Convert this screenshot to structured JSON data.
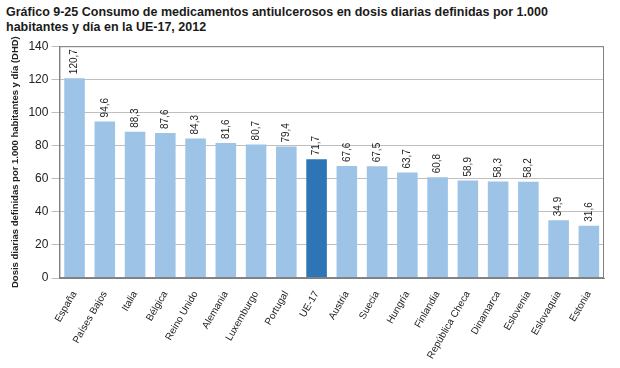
{
  "chart_data": {
    "type": "bar",
    "title": "Gráfico 9-25 Consumo de medicamentos antiulcerosos en dosis diarias definidas por 1.000 habitantes y día en la UE-17, 2012",
    "y_label": "Dosis diarias definidas por 1.000 habitantes y día (DHD)",
    "categories": [
      "España",
      "Países Bajos",
      "Italia",
      "Bélgica",
      "Reino Unido",
      "Alemania",
      "Luxemburgo",
      "Portugal",
      "UE-17",
      "Austria",
      "Suecia",
      "Hungría",
      "Finlandia",
      "República Checa",
      "Dinamarca",
      "Eslovenia",
      "Eslovaquia",
      "Estonia"
    ],
    "values": [
      120.7,
      94.6,
      88.3,
      87.6,
      84.3,
      81.6,
      80.7,
      79.4,
      71.7,
      67.6,
      67.5,
      63.7,
      60.8,
      58.9,
      58.3,
      58.2,
      34.9,
      31.6
    ],
    "value_labels": [
      "120,7",
      "94,6",
      "88,3",
      "87,6",
      "84,3",
      "81,6",
      "80,7",
      "79,4",
      "71,7",
      "67,6",
      "67,5",
      "63,7",
      "60,8",
      "58,9",
      "58,3",
      "58,2",
      "34,9",
      "31,6"
    ],
    "colors": [
      "#9dc3e6",
      "#9dc3e6",
      "#9dc3e6",
      "#9dc3e6",
      "#9dc3e6",
      "#9dc3e6",
      "#9dc3e6",
      "#9dc3e6",
      "#2e75b6",
      "#9dc3e6",
      "#9dc3e6",
      "#9dc3e6",
      "#9dc3e6",
      "#9dc3e6",
      "#9dc3e6",
      "#9dc3e6",
      "#9dc3e6",
      "#9dc3e6"
    ],
    "data_labels": true,
    "ylim": [
      0,
      140
    ],
    "yticks": [
      0,
      20,
      40,
      60,
      80,
      100,
      120,
      140
    ],
    "grid": true
  }
}
